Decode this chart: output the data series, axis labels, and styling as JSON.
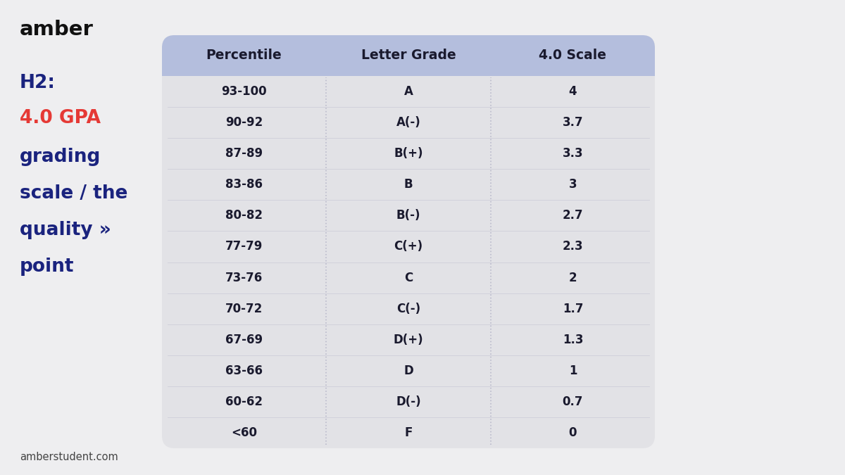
{
  "title_brand": "amber",
  "subtitle_line1": "H2:",
  "subtitle_line2": "4.0 GPA",
  "subtitle_line3_parts": [
    "grading",
    "scale / the",
    "quality »",
    "point"
  ],
  "footer": "amberstudent.com",
  "col_headers": [
    "Percentile",
    "Letter Grade",
    "4.0 Scale"
  ],
  "rows": [
    [
      "93-100",
      "A",
      "4"
    ],
    [
      "90-92",
      "A(-)",
      "3.7"
    ],
    [
      "87-89",
      "B(+)",
      "3.3"
    ],
    [
      "83-86",
      "B",
      "3"
    ],
    [
      "80-82",
      "B(-)",
      "2.7"
    ],
    [
      "77-79",
      "C(+)",
      "2.3"
    ],
    [
      "73-76",
      "C",
      "2"
    ],
    [
      "70-72",
      "C(-)",
      "1.7"
    ],
    [
      "67-69",
      "D(+)",
      "1.3"
    ],
    [
      "63-66",
      "D",
      "1"
    ],
    [
      "60-62",
      "D(-)",
      "0.7"
    ],
    [
      "<60",
      "F",
      "0"
    ]
  ],
  "bg_color": "#eeeef0",
  "table_bg": "#e2e2e6",
  "header_bg": "#b4bedd",
  "header_text_color": "#1a1a2e",
  "row_text_color": "#1a1a2e",
  "brand_color": "#111111",
  "h2_color": "#1a237e",
  "gpa_color": "#e53935",
  "subtitle_color": "#1a237e",
  "footer_color": "#444444",
  "divider_color": "#bbbbcc",
  "fig_width": 12.0,
  "fig_height": 6.75,
  "dpi": 100
}
